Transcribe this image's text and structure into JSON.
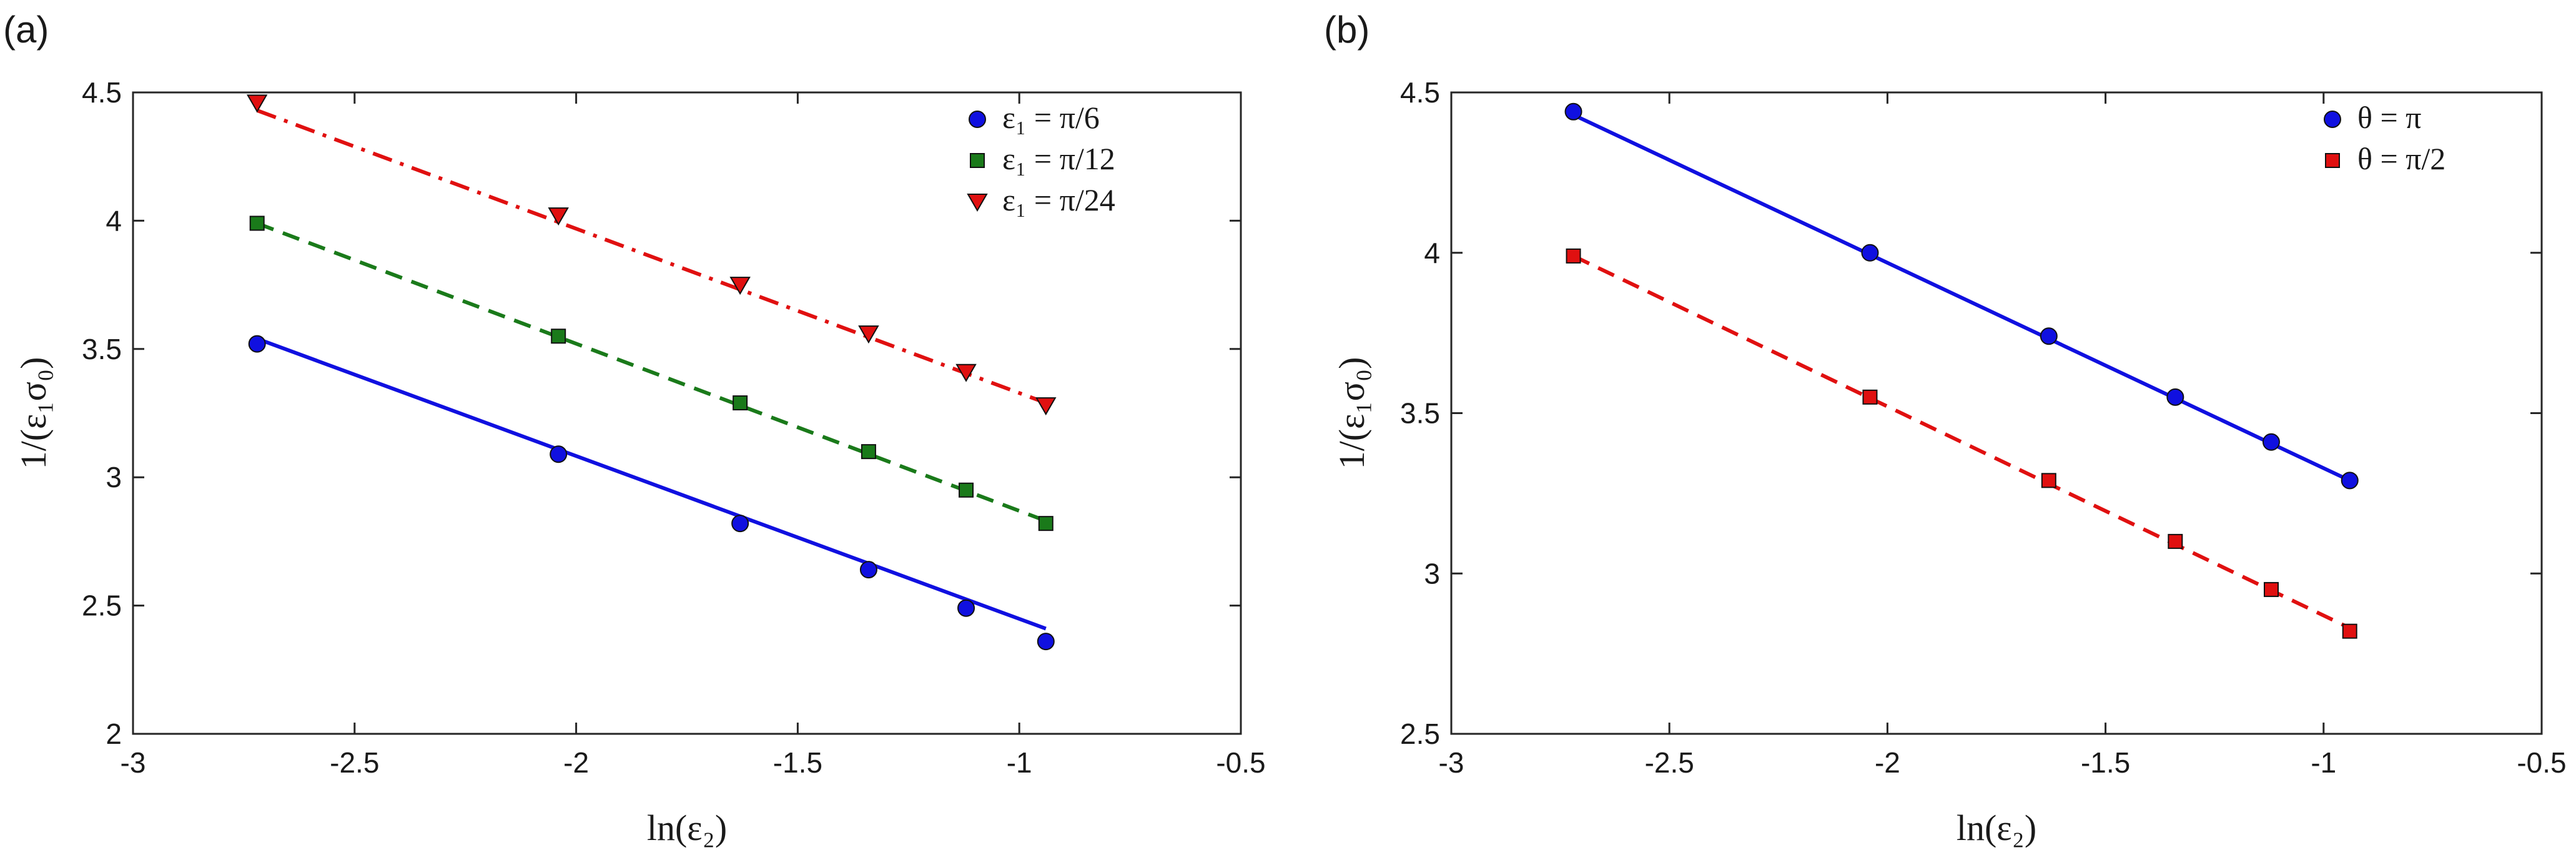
{
  "colors": {
    "blue": "#1010e0",
    "green": "#1a7a1a",
    "red": "#e01010",
    "axis": "#262626"
  },
  "chart_data": [
    {
      "type": "scatter",
      "panel_label": "(a)",
      "xlabel": "ln(ε₂)",
      "ylabel": "1/(ε₁σ₀)",
      "xlim": [
        -3,
        -0.5
      ],
      "ylim": [
        2,
        4.5
      ],
      "xticks": [
        -3,
        -2.5,
        -2,
        -1.5,
        -1,
        -0.5
      ],
      "xtick_labels": [
        "-3",
        "-2.5",
        "-2",
        "-1.5",
        "-1",
        "-0.5"
      ],
      "yticks": [
        2,
        2.5,
        3,
        3.5,
        4,
        4.5
      ],
      "ytick_labels": [
        "2",
        "2.5",
        "3",
        "3.5",
        "4",
        "4.5"
      ],
      "legend_position": "top-right",
      "series": [
        {
          "name": "ε₁ = π/6",
          "marker": "circle",
          "color": "#1010e0",
          "line": "solid",
          "x": [
            -2.72,
            -2.04,
            -1.63,
            -1.34,
            -1.12,
            -0.94
          ],
          "y": [
            3.52,
            3.09,
            2.82,
            2.64,
            2.49,
            2.36
          ],
          "fit": {
            "x": [
              -2.72,
              -0.94
            ],
            "y": [
              3.54,
              2.41
            ]
          }
        },
        {
          "name": "ε₁ = π/12",
          "marker": "square",
          "color": "#1a7a1a",
          "line": "dashed",
          "x": [
            -2.72,
            -2.04,
            -1.63,
            -1.34,
            -1.12,
            -0.94
          ],
          "y": [
            3.99,
            3.55,
            3.29,
            3.1,
            2.95,
            2.82
          ],
          "fit": {
            "x": [
              -2.72,
              -0.94
            ],
            "y": [
              3.99,
              2.83
            ]
          }
        },
        {
          "name": "ε₁ = π/24",
          "marker": "triangle-down",
          "color": "#e01010",
          "line": "dashdot",
          "x": [
            -2.72,
            -2.04,
            -1.63,
            -1.34,
            -1.12,
            -0.94
          ],
          "y": [
            4.46,
            4.02,
            3.75,
            3.56,
            3.41,
            3.28
          ],
          "fit": {
            "x": [
              -2.72,
              -0.94
            ],
            "y": [
              4.43,
              3.29
            ]
          }
        }
      ]
    },
    {
      "type": "scatter",
      "panel_label": "(b)",
      "xlabel": "ln(ε₂)",
      "ylabel": "1/(ε₁σ₀)",
      "xlim": [
        -3,
        -0.5
      ],
      "ylim": [
        2.5,
        4.5
      ],
      "xticks": [
        -3,
        -2.5,
        -2,
        -1.5,
        -1,
        -0.5
      ],
      "xtick_labels": [
        "-3",
        "-2.5",
        "-2",
        "-1.5",
        "-1",
        "-0.5"
      ],
      "yticks": [
        2.5,
        3,
        3.5,
        4,
        4.5
      ],
      "ytick_labels": [
        "2.5",
        "3",
        "3.5",
        "4",
        "4.5"
      ],
      "legend_position": "top-right",
      "series": [
        {
          "name": "θ = π",
          "marker": "circle",
          "color": "#1010e0",
          "line": "solid",
          "x": [
            -2.72,
            -2.04,
            -1.63,
            -1.34,
            -1.12,
            -0.94
          ],
          "y": [
            4.44,
            4.0,
            3.74,
            3.55,
            3.41,
            3.29
          ],
          "fit": {
            "x": [
              -2.72,
              -0.94
            ],
            "y": [
              4.43,
              3.29
            ]
          }
        },
        {
          "name": "θ = π/2",
          "marker": "square",
          "color": "#e01010",
          "line": "dashed",
          "x": [
            -2.72,
            -2.04,
            -1.63,
            -1.34,
            -1.12,
            -0.94
          ],
          "y": [
            3.99,
            3.55,
            3.29,
            3.1,
            2.95,
            2.82
          ],
          "fit": {
            "x": [
              -2.72,
              -0.94
            ],
            "y": [
              3.99,
              2.83
            ]
          }
        }
      ]
    }
  ]
}
